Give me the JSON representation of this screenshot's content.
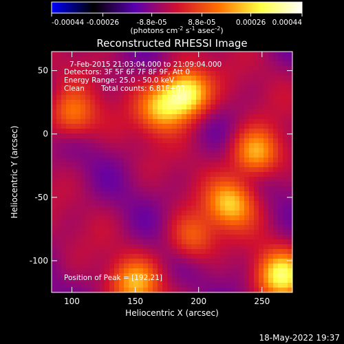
{
  "chart_data": {
    "type": "heatmap",
    "title": "Reconstructed RHESSI Image",
    "xlabel": "Heliocentric X (arcsec)",
    "ylabel": "Heliocentric Y (arcsec)",
    "xlim": [
      84,
      274
    ],
    "ylim": [
      -125,
      65
    ],
    "x_ticks": [
      100,
      150,
      200,
      250
    ],
    "y_ticks": [
      50,
      0,
      -50,
      -100
    ],
    "colorbar": {
      "label": "(photons cm",
      "label_sup1": "-2",
      "label_mid1": " s",
      "label_sup2": "-1",
      "label_mid2": " asec",
      "label_sup3": "-2",
      "label_end": ")",
      "range": [
        -0.00044,
        0.00044
      ],
      "tick_labels": [
        "-0.00044",
        "-0.00026",
        "-8.8e-05",
        "8.8e-05",
        "0.00026",
        "0.00044"
      ],
      "tick_values": [
        -0.00044,
        -0.00026,
        -8.8e-05,
        8.8e-05,
        0.00026,
        0.00044
      ],
      "colors": [
        "#0000ff",
        "#000000",
        "#5a00b0",
        "#d01030",
        "#ff7000",
        "#ffff40",
        "#ffffff"
      ]
    },
    "annotations": {
      "time_range": "7-Feb-2015 21:03:04.000 to 21:09:04.000",
      "detectors": "Detectors: 3F 5F 6F 7F 8F 9F, Att 0",
      "energy": "Energy Range: 25.0 - 50.0 keV",
      "method": "Clean",
      "counts": "Total counts: 6.81E+03",
      "peak": "Position of Peak = [192,21]"
    },
    "sources": [
      {
        "x": 190,
        "y": 32,
        "intensity": 0.00044
      },
      {
        "x": 170,
        "y": 20,
        "intensity": 0.00026
      },
      {
        "x": 100,
        "y": 15,
        "intensity": 0.00022
      },
      {
        "x": 245,
        "y": -15,
        "intensity": 0.0003
      },
      {
        "x": 225,
        "y": -55,
        "intensity": 0.00028
      },
      {
        "x": 265,
        "y": -112,
        "intensity": 0.00034
      },
      {
        "x": 150,
        "y": -118,
        "intensity": 0.00024
      },
      {
        "x": 195,
        "y": -82,
        "intensity": 0.00018
      }
    ]
  },
  "footer": {
    "timestamp": "18-May-2022 19:37"
  }
}
